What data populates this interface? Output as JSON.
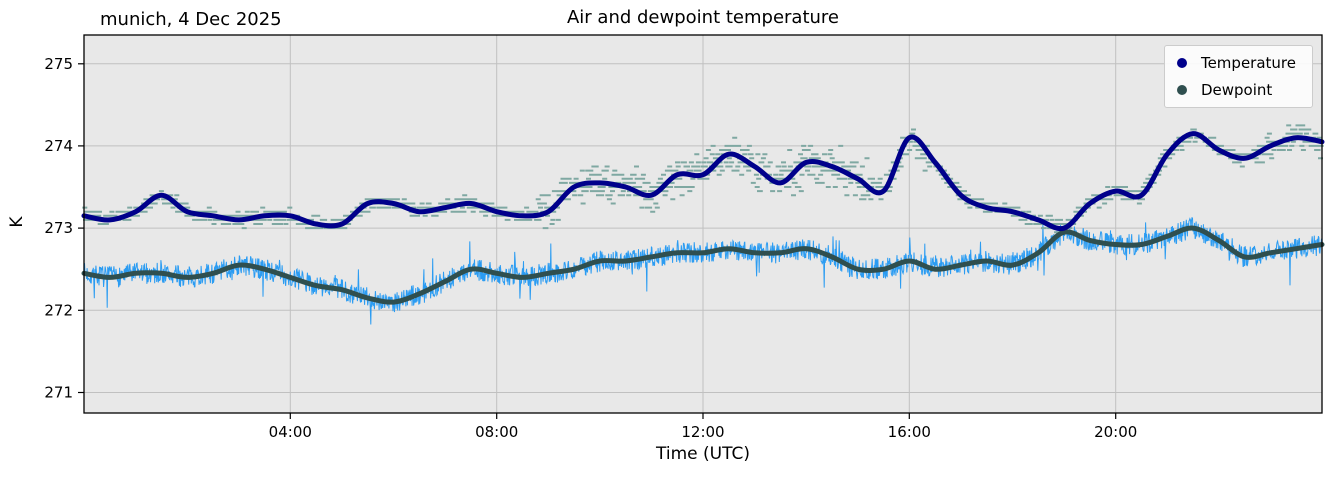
{
  "chart_data": {
    "type": "line",
    "title": "Air and dewpoint temperature",
    "annotation": "munich, 4 Dec 2025",
    "xlabel": "Time (UTC)",
    "ylabel": "K",
    "xlim_hours": [
      0,
      24
    ],
    "ylim": [
      270.75,
      275.35
    ],
    "yticks": [
      271,
      272,
      273,
      274,
      275
    ],
    "xticks": [
      {
        "hour": 4,
        "label": "04:00"
      },
      {
        "hour": 8,
        "label": "08:00"
      },
      {
        "hour": 12,
        "label": "12:00"
      },
      {
        "hour": 16,
        "label": "16:00"
      },
      {
        "hour": 20,
        "label": "20:00"
      }
    ],
    "grid": true,
    "plot_bg": "#e8e8e8",
    "grid_color": "#c0c0c0",
    "legend": {
      "position": "upper-right",
      "entries": [
        "Temperature",
        "Dewpoint"
      ]
    },
    "series": [
      {
        "name": "Temperature",
        "color": "#00008b",
        "raw_color": "#7fa8a2",
        "raw_style": "horizontal-dash-markers",
        "x_start_hour": 0,
        "x_step_hours": 0.5,
        "values": [
          273.15,
          273.1,
          273.2,
          273.4,
          273.2,
          273.15,
          273.1,
          273.15,
          273.15,
          273.05,
          273.05,
          273.3,
          273.3,
          273.2,
          273.25,
          273.3,
          273.2,
          273.15,
          273.2,
          273.5,
          273.55,
          273.5,
          273.4,
          273.65,
          273.65,
          273.9,
          273.75,
          273.55,
          273.8,
          273.75,
          273.6,
          273.45,
          274.1,
          273.8,
          273.4,
          273.25,
          273.2,
          273.1,
          273.0,
          273.3,
          273.45,
          273.4,
          273.9,
          274.15,
          273.95,
          273.85,
          274.0,
          274.1,
          274.05
        ]
      },
      {
        "name": "Dewpoint",
        "color": "#2f4f4f",
        "raw_color": "#2b9cf2",
        "raw_style": "noisy-line",
        "x_start_hour": 0,
        "x_step_hours": 0.5,
        "values": [
          272.45,
          272.4,
          272.45,
          272.45,
          272.4,
          272.45,
          272.55,
          272.5,
          272.4,
          272.3,
          272.25,
          272.15,
          272.1,
          272.2,
          272.35,
          272.5,
          272.45,
          272.4,
          272.45,
          272.5,
          272.6,
          272.6,
          272.65,
          272.7,
          272.7,
          272.75,
          272.7,
          272.7,
          272.75,
          272.65,
          272.5,
          272.5,
          272.6,
          272.5,
          272.55,
          272.6,
          272.55,
          272.7,
          272.95,
          272.85,
          272.8,
          272.8,
          272.9,
          273.0,
          272.85,
          272.65,
          272.7,
          272.75,
          272.8
        ]
      }
    ]
  }
}
